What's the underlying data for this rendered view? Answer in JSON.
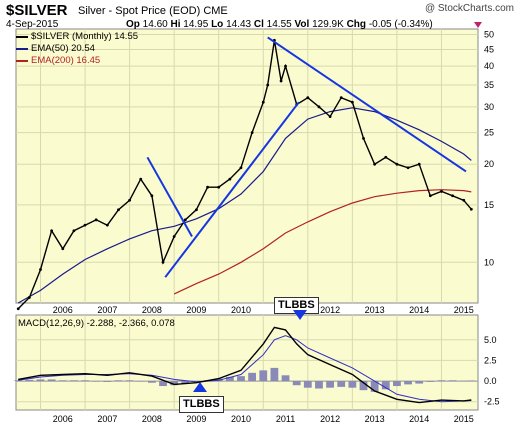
{
  "header": {
    "ticker": "$SILVER",
    "description": "Silver - Spot Price (EOD)",
    "exchange": "CME",
    "copyright": "@ StockCharts.com",
    "date": "4-Sep-2015",
    "open_label": "Op",
    "open": "14.60",
    "high_label": "Hi",
    "high": "14.95",
    "low_label": "Lo",
    "low": "14.43",
    "close_label": "Cl",
    "close": "14.55",
    "vol_label": "Vol",
    "vol": "129.9K",
    "chg_label": "Chg",
    "chg": "-0.05 (-0.34%)"
  },
  "legend": {
    "main": "$SILVER (Monthly) 14.55",
    "ema50": "EMA(50) 20.54",
    "ema200": "EMA(200) 16.45",
    "macd": "MACD(12,26,9) -2.288, -2.366, 0.078"
  },
  "callouts": {
    "top": "TLBBS",
    "bottom": "TLBBS"
  },
  "colors": {
    "panel_bg": "#fbfbd0",
    "candle": "#000000",
    "ema50": "#1a1a8c",
    "ema200": "#b22222",
    "trendline": "#1636e0",
    "macd": "#000000",
    "signal": "#3030c0",
    "histogram": "#8a8ab8",
    "arrow": "#1636e0",
    "chg_marker": "#c0226c"
  },
  "chart_data": [
    {
      "type": "candlestick",
      "title": "$SILVER (Monthly) 14.55",
      "log_scale": true,
      "ylim": [
        7.5,
        52
      ],
      "yticks": [
        50,
        45,
        40,
        35,
        30,
        25,
        20,
        15,
        10
      ],
      "x_labels": [
        "2006",
        "2007",
        "2008",
        "2009",
        "2010",
        "2011",
        "2012",
        "2013",
        "2014",
        "2015"
      ],
      "grid": true,
      "close_x": [
        2005.5,
        2005.75,
        2006.0,
        2006.25,
        2006.5,
        2006.75,
        2007.0,
        2007.25,
        2007.5,
        2007.75,
        2008.0,
        2008.25,
        2008.5,
        2008.75,
        2009.0,
        2009.25,
        2009.5,
        2009.75,
        2010.0,
        2010.25,
        2010.5,
        2010.75,
        2011.0,
        2011.1,
        2011.25,
        2011.4,
        2011.5,
        2011.75,
        2012.0,
        2012.25,
        2012.5,
        2012.75,
        2013.0,
        2013.25,
        2013.5,
        2013.75,
        2014.0,
        2014.25,
        2014.5,
        2014.75,
        2015.0,
        2015.25,
        2015.5,
        2015.67
      ],
      "close": [
        7.2,
        7.8,
        9.5,
        12.5,
        11.0,
        12.5,
        13.0,
        13.5,
        13.0,
        14.5,
        15.5,
        18.0,
        16.0,
        10.0,
        12.0,
        13.5,
        14.5,
        17.0,
        17.0,
        18.0,
        19.5,
        25.0,
        31.0,
        35.0,
        48.0,
        36.0,
        40.0,
        30.5,
        32.0,
        30.0,
        28.0,
        32.0,
        31.0,
        24.0,
        20.0,
        21.0,
        20.0,
        19.5,
        20.0,
        16.0,
        16.5,
        16.0,
        15.5,
        14.55
      ],
      "ema50_x": [
        2005.5,
        2006.0,
        2006.5,
        2007.0,
        2007.5,
        2008.0,
        2008.5,
        2009.0,
        2009.5,
        2010.0,
        2010.5,
        2011.0,
        2011.5,
        2012.0,
        2012.5,
        2013.0,
        2013.5,
        2014.0,
        2014.5,
        2015.0,
        2015.5,
        2015.67
      ],
      "ema50": [
        7.5,
        8.2,
        9.2,
        10.2,
        11.0,
        11.8,
        12.5,
        12.9,
        13.6,
        14.6,
        16.2,
        19.0,
        24.0,
        27.5,
        29.0,
        29.8,
        29.0,
        27.3,
        25.5,
        23.5,
        21.5,
        20.54
      ],
      "ema200_x": [
        2009.0,
        2009.5,
        2010.0,
        2010.5,
        2011.0,
        2011.5,
        2012.0,
        2012.5,
        2013.0,
        2013.5,
        2014.0,
        2014.5,
        2015.0,
        2015.5,
        2015.67
      ],
      "ema200": [
        8.0,
        8.6,
        9.2,
        10.0,
        11.0,
        12.3,
        13.3,
        14.3,
        15.2,
        15.9,
        16.3,
        16.6,
        16.7,
        16.6,
        16.45
      ],
      "trendlines": [
        {
          "from": [
            2008.4,
            21.0
          ],
          "to": [
            2009.4,
            12.0
          ]
        },
        {
          "from": [
            2008.8,
            9.0
          ],
          "to": [
            2011.8,
            31.0
          ]
        },
        {
          "from": [
            2011.1,
            49.0
          ],
          "to": [
            2015.55,
            19.0
          ]
        }
      ]
    },
    {
      "type": "line",
      "title": "MACD(12,26,9) -2.288, -2.366, 0.078",
      "ylim": [
        -3.5,
        8.0
      ],
      "yticks": [
        5.0,
        2.5,
        0.0,
        -2.5
      ],
      "x_labels": [
        "2006",
        "2007",
        "2008",
        "2009",
        "2010",
        "2011",
        "2012",
        "2013",
        "2014",
        "2015"
      ],
      "x": [
        2005.5,
        2006.0,
        2006.5,
        2007.0,
        2007.5,
        2008.0,
        2008.5,
        2009.0,
        2009.5,
        2010.0,
        2010.5,
        2011.0,
        2011.25,
        2011.5,
        2011.75,
        2012.0,
        2012.5,
        2013.0,
        2013.5,
        2014.0,
        2014.5,
        2015.0,
        2015.5,
        2015.67
      ],
      "macd": [
        0.2,
        0.7,
        0.8,
        0.9,
        0.7,
        1.0,
        0.6,
        -0.4,
        -0.2,
        0.3,
        1.3,
        4.5,
        6.5,
        6.2,
        4.5,
        3.2,
        2.0,
        0.8,
        -1.2,
        -2.2,
        -2.6,
        -2.3,
        -2.4,
        -2.288
      ],
      "signal": [
        0.1,
        0.5,
        0.7,
        0.8,
        0.8,
        0.9,
        0.7,
        0.2,
        -0.1,
        0.1,
        0.8,
        3.2,
        5.0,
        5.5,
        5.0,
        4.0,
        2.8,
        1.6,
        0.0,
        -1.6,
        -2.2,
        -2.5,
        -2.4,
        -2.366
      ],
      "histogram_x": [
        2005.5,
        2005.75,
        2006.0,
        2006.25,
        2006.5,
        2006.75,
        2007.0,
        2007.25,
        2007.5,
        2007.75,
        2008.0,
        2008.25,
        2008.5,
        2008.75,
        2009.0,
        2009.25,
        2009.5,
        2009.75,
        2010.0,
        2010.25,
        2010.5,
        2010.75,
        2011.0,
        2011.25,
        2011.5,
        2011.75,
        2012.0,
        2012.25,
        2012.5,
        2012.75,
        2013.0,
        2013.25,
        2013.5,
        2013.75,
        2014.0,
        2014.25,
        2014.5,
        2014.75,
        2015.0,
        2015.25,
        2015.5,
        2015.67
      ],
      "histogram": [
        0.1,
        0.15,
        0.2,
        0.2,
        0.1,
        0.1,
        0.1,
        0.0,
        -0.1,
        0.1,
        0.1,
        0.0,
        -0.2,
        -0.6,
        -0.5,
        -0.3,
        -0.1,
        0.1,
        0.3,
        0.5,
        0.6,
        1.0,
        1.3,
        1.6,
        0.7,
        -0.5,
        -0.8,
        -0.9,
        -0.8,
        -0.7,
        -0.8,
        -1.1,
        -1.3,
        -1.0,
        -0.6,
        -0.4,
        -0.3,
        -0.1,
        0.1,
        0.1,
        0.05,
        0.078
      ]
    }
  ]
}
